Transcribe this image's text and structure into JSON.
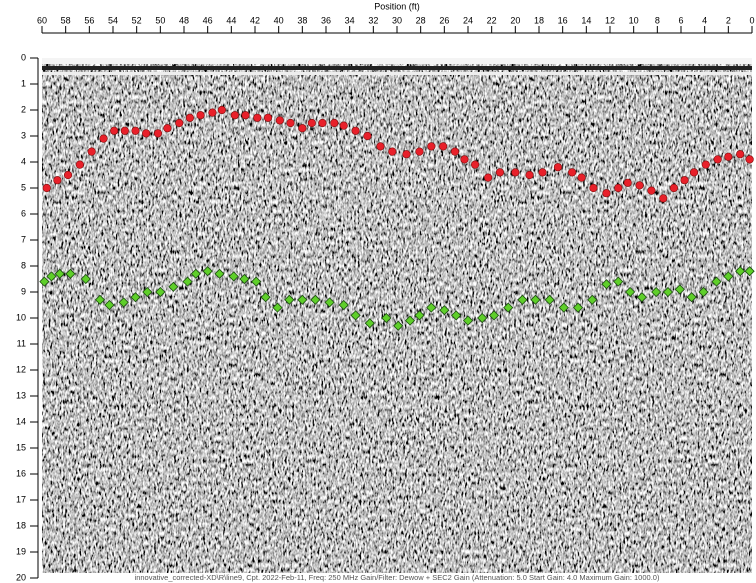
{
  "chart_data": {
    "type": "scatter",
    "x_label": "Position (ft)",
    "footer": "innovative_corrected-XD\\R\\line9, Cpt. 2022-Feb-11, Freq: 250 MHz Gain/Filter: Dewow + SEC2 Gain (Attenuation: 5.0 Start Gain: 4.0 Maximum Gain: 1000.0)",
    "xlim": [
      60,
      0
    ],
    "ylim": [
      0,
      20
    ],
    "xticks": [
      60,
      58,
      56,
      54,
      52,
      50,
      48,
      46,
      44,
      42,
      40,
      38,
      36,
      34,
      32,
      30,
      28,
      26,
      24,
      22,
      20,
      18,
      16,
      14,
      12,
      10,
      8,
      6,
      4,
      2,
      0
    ],
    "yticks": [
      0,
      1,
      2,
      3,
      4,
      5,
      6,
      7,
      8,
      9,
      10,
      11,
      12,
      13,
      14,
      15,
      16,
      17,
      18,
      19,
      20
    ],
    "series": [
      {
        "color": "#e8202a",
        "marker": "circle",
        "x": [
          59.6,
          58.7,
          57.8,
          56.8,
          55.8,
          54.8,
          53.9,
          53.0,
          52.1,
          51.2,
          50.2,
          49.4,
          48.4,
          47.5,
          46.6,
          45.6,
          44.8,
          43.7,
          42.8,
          41.8,
          40.9,
          39.9,
          39.0,
          38.0,
          37.2,
          36.3,
          35.3,
          34.5,
          33.5,
          32.5,
          31.4,
          30.4,
          29.2,
          28.1,
          27.1,
          26.1,
          25.1,
          24.3,
          23.4,
          22.3,
          21.3,
          20.0,
          18.8,
          17.7,
          16.4,
          15.2,
          14.4,
          13.4,
          12.3,
          11.3,
          10.5,
          9.5,
          8.5,
          7.5,
          6.6,
          5.7,
          4.9,
          3.9,
          2.9,
          2.0,
          1.0,
          0.2
        ],
        "values": [
          5.0,
          4.7,
          4.5,
          4.1,
          3.6,
          3.1,
          2.8,
          2.8,
          2.8,
          2.9,
          2.9,
          2.7,
          2.5,
          2.3,
          2.2,
          2.1,
          2.0,
          2.2,
          2.2,
          2.3,
          2.3,
          2.4,
          2.5,
          2.7,
          2.5,
          2.5,
          2.5,
          2.6,
          2.8,
          3.0,
          3.4,
          3.6,
          3.7,
          3.6,
          3.4,
          3.4,
          3.6,
          3.9,
          4.1,
          4.6,
          4.4,
          4.4,
          4.5,
          4.4,
          4.2,
          4.4,
          4.6,
          5.0,
          5.2,
          5.0,
          4.8,
          4.9,
          5.1,
          5.4,
          5.0,
          4.7,
          4.4,
          4.1,
          3.9,
          3.8,
          3.7,
          3.9
        ]
      },
      {
        "color": "#5fcf2a",
        "marker": "diamond",
        "x": [
          59.8,
          59.2,
          58.5,
          57.6,
          56.3,
          55.1,
          54.3,
          53.1,
          52.1,
          51.1,
          50.0,
          48.9,
          47.7,
          47.0,
          46.0,
          45.0,
          43.8,
          42.9,
          41.9,
          41.1,
          40.1,
          39.1,
          38.0,
          36.9,
          35.7,
          34.5,
          33.5,
          32.3,
          30.9,
          29.9,
          28.9,
          28.1,
          27.1,
          26.0,
          25.0,
          24.0,
          22.8,
          21.8,
          20.6,
          19.4,
          18.3,
          17.1,
          15.9,
          14.7,
          13.5,
          12.3,
          11.3,
          10.3,
          9.3,
          8.1,
          7.1,
          6.1,
          5.1,
          4.1,
          3.0,
          2.0,
          1.0,
          0.2
        ],
        "values": [
          8.6,
          8.4,
          8.3,
          8.3,
          8.5,
          9.3,
          9.5,
          9.4,
          9.2,
          9.0,
          9.0,
          8.8,
          8.6,
          8.3,
          8.2,
          8.3,
          8.4,
          8.5,
          8.6,
          9.2,
          9.6,
          9.3,
          9.3,
          9.3,
          9.4,
          9.5,
          9.9,
          10.2,
          10.0,
          10.3,
          10.1,
          9.9,
          9.6,
          9.7,
          9.9,
          10.1,
          10.0,
          9.9,
          9.6,
          9.3,
          9.3,
          9.3,
          9.6,
          9.6,
          9.3,
          8.7,
          8.6,
          9.0,
          9.2,
          9.0,
          9.0,
          8.9,
          9.2,
          9.0,
          8.6,
          8.4,
          8.2,
          8.2
        ]
      }
    ]
  }
}
